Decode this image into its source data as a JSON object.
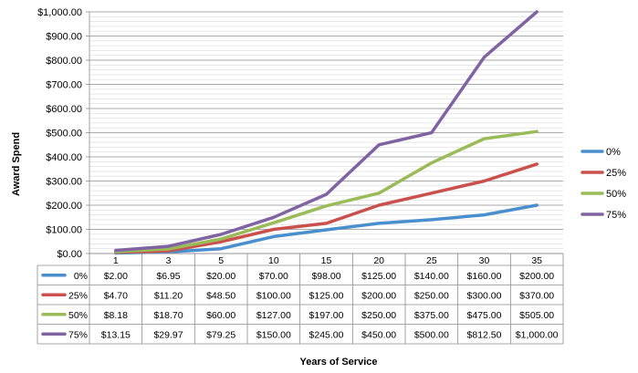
{
  "chart_data": {
    "type": "line",
    "x": [
      "1",
      "3",
      "5",
      "10",
      "15",
      "20",
      "25",
      "30",
      "35"
    ],
    "xlabel": "Years of Service",
    "ylabel": "Award Spend",
    "ylim": [
      0,
      1000
    ],
    "ytick_step": 100,
    "y_tick_labels": [
      "$0.00",
      "$100.00",
      "$200.00",
      "$300.00",
      "$400.00",
      "$500.00",
      "$600.00",
      "$700.00",
      "$800.00",
      "$900.00",
      "$1,000.00"
    ],
    "grid": true,
    "legend_position": "right",
    "series": [
      {
        "name": "0%",
        "color": "#4a8fcd",
        "values": [
          2.0,
          6.95,
          20.0,
          70.0,
          98.0,
          125.0,
          140.0,
          160.0,
          200.0
        ],
        "labels": [
          "$2.00",
          "$6.95",
          "$20.00",
          "$70.00",
          "$98.00",
          "$125.00",
          "$140.00",
          "$160.00",
          "$200.00"
        ]
      },
      {
        "name": "25%",
        "color": "#c9504c",
        "values": [
          4.7,
          11.2,
          48.5,
          100.0,
          125.0,
          200.0,
          250.0,
          300.0,
          370.0
        ],
        "labels": [
          "$4.70",
          "$11.20",
          "$48.50",
          "$100.00",
          "$125.00",
          "$200.00",
          "$250.00",
          "$300.00",
          "$370.00"
        ]
      },
      {
        "name": "50%",
        "color": "#9bbb59",
        "values": [
          8.18,
          18.7,
          60.0,
          127.0,
          197.0,
          250.0,
          375.0,
          475.0,
          505.0
        ],
        "labels": [
          "$8.18",
          "$18.70",
          "$60.00",
          "$127.00",
          "$197.00",
          "$250.00",
          "$375.00",
          "$475.00",
          "$505.00"
        ]
      },
      {
        "name": "75%",
        "color": "#8064a2",
        "values": [
          13.15,
          29.97,
          79.25,
          150.0,
          245.0,
          450.0,
          500.0,
          812.5,
          1000.0
        ],
        "labels": [
          "$13.15",
          "$29.97",
          "$79.25",
          "$150.00",
          "$245.00",
          "$450.00",
          "$500.00",
          "$812.50",
          "$1,000.00"
        ]
      }
    ]
  }
}
